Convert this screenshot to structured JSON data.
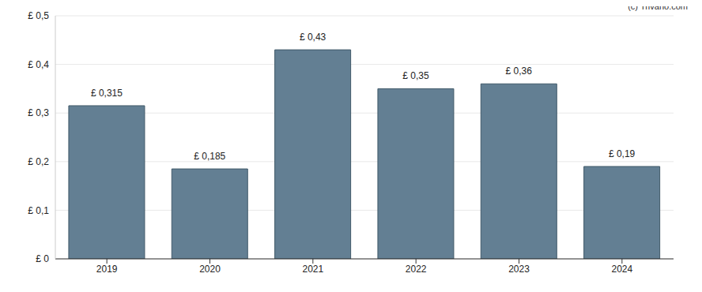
{
  "chart_data": {
    "type": "bar",
    "annotation": "(c) Trivano.com",
    "categories": [
      "2019",
      "2020",
      "2021",
      "2022",
      "2023",
      "2024"
    ],
    "values": [
      0.315,
      0.185,
      0.43,
      0.35,
      0.36,
      0.19
    ],
    "value_labels": [
      "£ 0,315",
      "£ 0,185",
      "£ 0,43",
      "£ 0,35",
      "£ 0,36",
      "£ 0,19"
    ],
    "color": "#637f93",
    "ylim": [
      0,
      0.5
    ],
    "yticks": [
      {
        "value": 0,
        "label": "£ 0"
      },
      {
        "value": 0.1,
        "label": "£ 0,1"
      },
      {
        "value": 0.2,
        "label": "£ 0,2"
      },
      {
        "value": 0.3,
        "label": "£ 0,3"
      },
      {
        "value": 0.4,
        "label": "£ 0,4"
      },
      {
        "value": 0.5,
        "label": "£ 0,5"
      }
    ],
    "grid": true,
    "data_labels": true
  }
}
